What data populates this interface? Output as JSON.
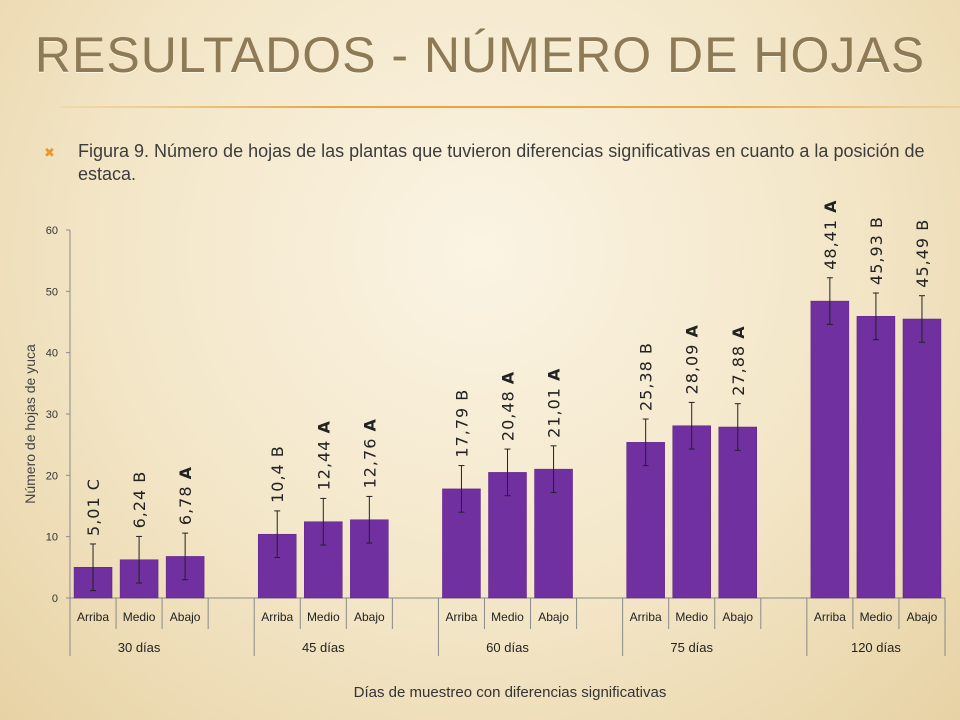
{
  "slide": {
    "title": "Resultados - Número de hojas",
    "caption": "Figura 9. Número de hojas de las plantas que tuvieron diferencias significativas en cuanto a la posición de estaca.",
    "bullet_icon": "x-bullet-icon"
  },
  "chart_data": {
    "type": "bar",
    "ylabel": "Número de hojas de yuca",
    "xlabel": "Días de muestreo con diferencias significativas",
    "ylim": [
      0,
      60
    ],
    "yticks": [
      0,
      10,
      20,
      30,
      40,
      50,
      60
    ],
    "bar_color": "#7030a0",
    "groups": [
      {
        "name": "30 días",
        "bars": [
          {
            "category": "Arriba",
            "value": 5.01,
            "label": "5,01",
            "letter": "C",
            "err": 3.8
          },
          {
            "category": "Medio",
            "value": 6.24,
            "label": "6,24",
            "letter": "B",
            "err": 3.8
          },
          {
            "category": "Abajo",
            "value": 6.78,
            "label": "6,78",
            "letter": "A",
            "err": 3.8
          }
        ]
      },
      {
        "name": "45 días",
        "bars": [
          {
            "category": "Arriba",
            "value": 10.4,
            "label": "10,4",
            "letter": "B",
            "err": 3.8
          },
          {
            "category": "Medio",
            "value": 12.44,
            "label": "12,44",
            "letter": "A",
            "err": 3.8
          },
          {
            "category": "Abajo",
            "value": 12.76,
            "label": "12,76",
            "letter": "A",
            "err": 3.8
          }
        ]
      },
      {
        "name": "60 días",
        "bars": [
          {
            "category": "Arriba",
            "value": 17.79,
            "label": "17,79",
            "letter": "B",
            "err": 3.8
          },
          {
            "category": "Medio",
            "value": 20.48,
            "label": "20,48",
            "letter": "A",
            "err": 3.8
          },
          {
            "category": "Abajo",
            "value": 21.01,
            "label": "21,01",
            "letter": "A",
            "err": 3.8
          }
        ]
      },
      {
        "name": "75 días",
        "bars": [
          {
            "category": "Arriba",
            "value": 25.38,
            "label": "25,38",
            "letter": "B",
            "err": 3.8
          },
          {
            "category": "Medio",
            "value": 28.09,
            "label": "28,09",
            "letter": "A",
            "err": 3.8
          },
          {
            "category": "Abajo",
            "value": 27.88,
            "label": "27,88",
            "letter": "A",
            "err": 3.8
          }
        ]
      },
      {
        "name": "120 días",
        "bars": [
          {
            "category": "Arriba",
            "value": 48.41,
            "label": "48,41",
            "letter": "A",
            "err": 3.8
          },
          {
            "category": "Medio",
            "value": 45.93,
            "label": "45,93",
            "letter": "B",
            "err": 3.8
          },
          {
            "category": "Abajo",
            "value": 45.49,
            "label": "45,49",
            "letter": "B",
            "err": 3.8
          }
        ]
      }
    ]
  }
}
